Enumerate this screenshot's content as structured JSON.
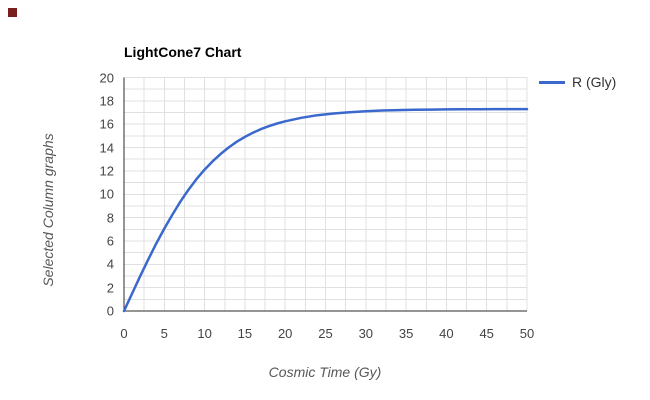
{
  "page": {
    "background": "#ffffff"
  },
  "corner_marker": {
    "color": "#7a1f1f"
  },
  "chart": {
    "title": "LightCone7 Chart",
    "legend": [
      {
        "label": "R (Gly)",
        "color": "#3b68cc"
      }
    ],
    "x_axis": {
      "title": "Cosmic Time (Gy)",
      "ticks": [
        0,
        5,
        10,
        15,
        20,
        25,
        30,
        35,
        40,
        45,
        50
      ]
    },
    "y_axis": {
      "title": "Selected Column graphs",
      "ticks": [
        0,
        2,
        4,
        6,
        8,
        10,
        12,
        14,
        16,
        18,
        20
      ]
    },
    "colors": {
      "series": "#3b68cc",
      "grid": "#e0e0e0",
      "axis": "#2b2b2b",
      "tick_text": "#444444",
      "axis_title_text": "#575757",
      "title_text": "#000000",
      "legend_text": "#333333"
    }
  },
  "chart_data": {
    "type": "line",
    "title": "LightCone7 Chart",
    "xlabel": "Cosmic Time (Gy)",
    "ylabel": "Selected Column graphs",
    "xlim": [
      0,
      50
    ],
    "ylim": [
      0,
      20
    ],
    "x_minor_step": 2.5,
    "y_minor_step": 1,
    "grid": true,
    "legend_position": "right",
    "series": [
      {
        "name": "R (Gly)",
        "color": "#3b68cc",
        "x": [
          0,
          1,
          2,
          3,
          4,
          5,
          6,
          7,
          8,
          9,
          10,
          11,
          12,
          13,
          14,
          15,
          16,
          17,
          18,
          19,
          20,
          22,
          24,
          26,
          28,
          30,
          32,
          34,
          36,
          38,
          40,
          42,
          44,
          46,
          48,
          50
        ],
        "y": [
          0,
          1.5,
          2.97,
          4.4,
          5.77,
          7.06,
          8.26,
          9.37,
          10.39,
          11.3,
          12.11,
          12.83,
          13.46,
          14.01,
          14.5,
          14.91,
          15.27,
          15.58,
          15.84,
          16.06,
          16.25,
          16.55,
          16.77,
          16.92,
          17.03,
          17.11,
          17.17,
          17.21,
          17.23,
          17.25,
          17.27,
          17.28,
          17.28,
          17.29,
          17.29,
          17.29
        ]
      }
    ]
  }
}
